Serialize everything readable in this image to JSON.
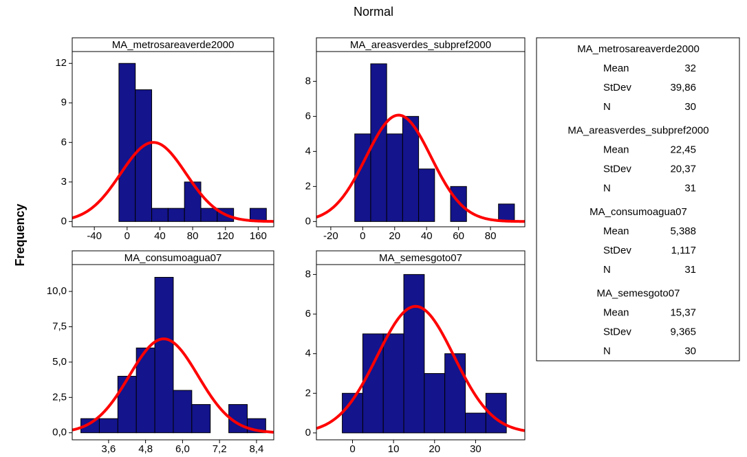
{
  "subtitle": "Normal",
  "y_label": "Frequency",
  "stat_names": [
    "Mean",
    "StDev",
    "N"
  ],
  "chart_data": [
    {
      "type": "histogram",
      "title": "MA_metrosareaverde2000",
      "color": "#14148c",
      "curve_color": "#ff0000",
      "bins": [
        -10,
        10,
        30,
        50,
        70,
        90,
        110,
        130,
        150,
        170
      ],
      "counts": [
        12,
        10,
        1,
        1,
        3,
        1,
        1,
        0,
        1
      ],
      "xlim": [
        -67,
        179
      ],
      "xticks": [
        -40,
        0,
        40,
        80,
        120,
        160
      ],
      "ylim": [
        -0.4,
        12.9
      ],
      "yticks": [
        0,
        3,
        6,
        9,
        12
      ],
      "stat_values": [
        32,
        39.86,
        30
      ],
      "stat_value_labels": [
        "32",
        "39,86",
        "30"
      ]
    },
    {
      "type": "histogram",
      "title": "MA_areasverdes_subpref2000",
      "color": "#14148c",
      "curve_color": "#ff0000",
      "bins": [
        -5,
        5,
        15,
        25,
        35,
        45,
        55,
        65,
        75,
        85,
        95
      ],
      "counts": [
        5,
        9,
        5,
        6,
        3,
        0,
        2,
        0,
        0,
        1
      ],
      "xlim": [
        -29,
        101.5
      ],
      "xticks": [
        -20,
        0,
        20,
        40,
        60,
        80
      ],
      "ylim": [
        -0.3,
        9.7
      ],
      "yticks": [
        0,
        2,
        4,
        6,
        8
      ],
      "stat_values": [
        22.45,
        20.37,
        31
      ],
      "stat_value_labels": [
        "22,45",
        "20,37",
        "31"
      ]
    },
    {
      "type": "histogram",
      "title": "MA_consumoagua07",
      "color": "#14148c",
      "curve_color": "#ff0000",
      "bins": [
        2.7,
        3.3,
        3.9,
        4.5,
        5.1,
        5.7,
        6.3,
        6.9,
        7.5,
        8.1,
        8.7
      ],
      "counts": [
        1,
        1,
        4,
        6,
        11,
        3,
        2,
        0,
        2,
        1
      ],
      "xlim": [
        2.42,
        8.96
      ],
      "xticks": [
        {
          "value": 3.6,
          "label": "3,6"
        },
        {
          "value": 4.8,
          "label": "4,8"
        },
        {
          "value": 6.0,
          "label": "6,0"
        },
        {
          "value": 7.2,
          "label": "7,2"
        },
        {
          "value": 8.4,
          "label": "8,4"
        }
      ],
      "ylim": [
        -0.5,
        11.9
      ],
      "yticks": [
        {
          "value": 0,
          "label": "0,0"
        },
        {
          "value": 2.5,
          "label": "2,5"
        },
        {
          "value": 5,
          "label": "5,0"
        },
        {
          "value": 7.5,
          "label": "7,5"
        },
        {
          "value": 10,
          "label": "10,0"
        }
      ],
      "stat_values": [
        5.388,
        1.117,
        31
      ],
      "stat_value_labels": [
        "5,388",
        "1,117",
        "31"
      ]
    },
    {
      "type": "histogram",
      "title": "MA_semesgoto07",
      "color": "#14148c",
      "curve_color": "#ff0000",
      "bins": [
        -2.5,
        2.5,
        7.5,
        12.5,
        17.5,
        22.5,
        27.5,
        32.5,
        37.5
      ],
      "counts": [
        2,
        5,
        5,
        8,
        3,
        4,
        1,
        2
      ],
      "xlim": [
        -8.8,
        42
      ],
      "xticks": [
        0,
        10,
        20,
        30
      ],
      "ylim": [
        -0.35,
        8.5
      ],
      "yticks": [
        0,
        2,
        4,
        6,
        8
      ],
      "stat_values": [
        15.37,
        9.365,
        30
      ],
      "stat_value_labels": [
        "15,37",
        "9,365",
        "30"
      ]
    }
  ]
}
